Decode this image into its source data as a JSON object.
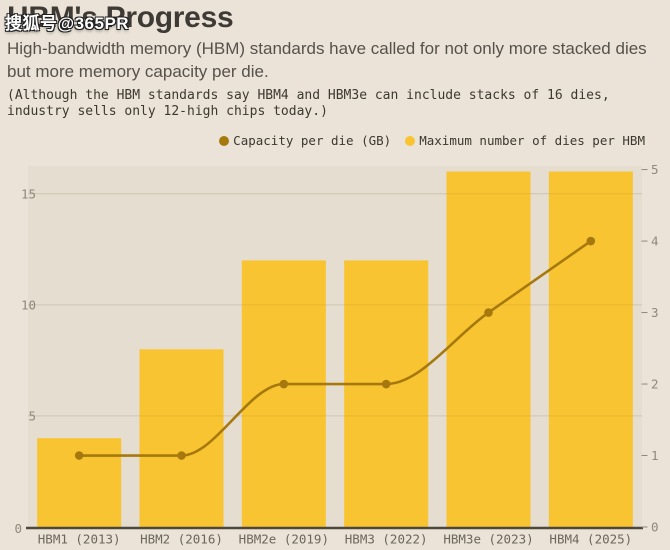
{
  "watermark": "搜狐号@365PR",
  "header": {
    "title": "HBM's Progress",
    "subtitle_line1": "High-bandwidth memory (HBM) standards have called for not only more stacked dies",
    "subtitle_line2": "but more memory capacity per die.",
    "note_line1": "(Although the HBM standards say HBM4 and HBM3e can include stacks of 16 dies,",
    "note_line2": "industry sells only 12-high chips today.)"
  },
  "legend": {
    "items": [
      {
        "label": "Capacity per die (GB)",
        "color": "#A6790E"
      },
      {
        "label": "Maximum number of dies per HBM",
        "color": "#F9C431"
      }
    ]
  },
  "colors": {
    "background": "#EBE3D7",
    "plot_tint": "rgba(90,70,30,0.04)",
    "bar": "#F9C431",
    "line": "#A6790E",
    "grid": "#DBD3C4",
    "grid_over_bar": "rgba(70,55,20,0.09)",
    "axis_line": "#4C4840",
    "y_tick_label": "#8E897B",
    "x_tick_label": "#6B665B"
  },
  "chart_data": {
    "type": "bar",
    "title": "HBM's Progress",
    "subtitle": "High-bandwidth memory (HBM) standards have called for not only more stacked dies but more memory capacity per die.",
    "annotation": "(Although the HBM standards say HBM4 and HBM3e can include stacks of 16 dies, industry sells only 12-high chips today.)",
    "categories": [
      "HBM1 (2013)",
      "HBM2 (2016)",
      "HBM2e (2019)",
      "HBM3 (2022)",
      "HBM3e (2023)",
      "HBM4 (2025)"
    ],
    "series": [
      {
        "name": "Maximum number of dies per HBM",
        "type": "bar",
        "axis": "left",
        "color": "#F9C431",
        "values": [
          4,
          8,
          12,
          12,
          16,
          16
        ]
      },
      {
        "name": "Capacity per die (GB)",
        "type": "line",
        "axis": "right",
        "color": "#A6790E",
        "values": [
          1,
          1,
          2,
          2,
          3,
          4
        ]
      }
    ],
    "left_axis": {
      "ticks": [
        0,
        5,
        10,
        15
      ],
      "range": [
        0,
        16.25
      ],
      "gridlines": true
    },
    "right_axis": {
      "ticks": [
        0,
        1,
        2,
        3,
        4,
        5
      ],
      "range": [
        0,
        5.05
      ],
      "gridlines": false,
      "tick_marks": true
    },
    "legend_position": "top-right",
    "line_interpolation": "monotone"
  }
}
